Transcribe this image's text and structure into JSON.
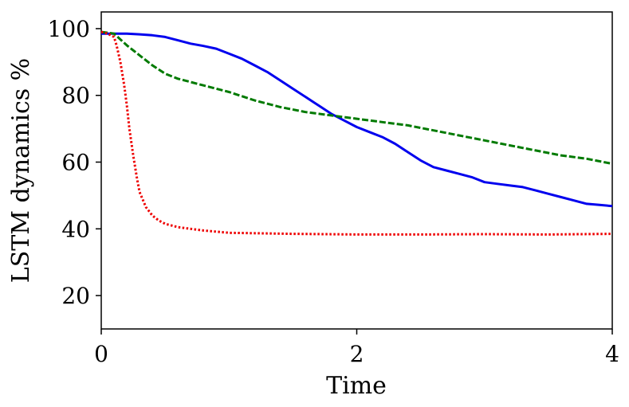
{
  "chart_data": {
    "type": "line",
    "xlabel": "Time",
    "ylabel": "LSTM dynamics %",
    "xlim": [
      0,
      4
    ],
    "ylim": [
      10,
      105
    ],
    "xticks": [
      0,
      2,
      4
    ],
    "yticks": [
      20,
      40,
      60,
      80,
      100
    ],
    "grid": false,
    "legend": "none",
    "series": [
      {
        "color": "#0000ee",
        "style": "solid",
        "x": [
          0,
          0.1,
          0.2,
          0.3,
          0.4,
          0.5,
          0.6,
          0.7,
          0.8,
          0.9,
          1.0,
          1.1,
          1.2,
          1.3,
          1.4,
          1.5,
          1.6,
          1.7,
          1.8,
          1.9,
          2.0,
          2.1,
          2.2,
          2.3,
          2.4,
          2.5,
          2.6,
          2.7,
          2.8,
          2.9,
          3.0,
          3.1,
          3.2,
          3.3,
          3.4,
          3.5,
          3.6,
          3.7,
          3.8,
          3.9,
          4.0
        ],
        "y": [
          98.5,
          98.5,
          98.5,
          98.3,
          98.0,
          97.5,
          96.5,
          95.5,
          94.8,
          94.0,
          92.5,
          91.0,
          89.0,
          87.0,
          84.5,
          82.0,
          79.5,
          77.0,
          74.5,
          72.5,
          70.5,
          69.0,
          67.5,
          65.5,
          63.0,
          60.5,
          58.5,
          57.5,
          56.5,
          55.5,
          54.0,
          53.5,
          53.0,
          52.5,
          51.5,
          50.5,
          49.5,
          48.5,
          47.5,
          47.2,
          46.8
        ]
      },
      {
        "color": "#007a00",
        "style": "dashed",
        "x": [
          0,
          0.1,
          0.2,
          0.3,
          0.4,
          0.5,
          0.6,
          0.8,
          1.0,
          1.2,
          1.4,
          1.6,
          1.8,
          2.0,
          2.2,
          2.4,
          2.6,
          2.8,
          3.0,
          3.2,
          3.4,
          3.6,
          3.8,
          4.0
        ],
        "y": [
          99.0,
          98.5,
          95.0,
          92.0,
          89.0,
          86.5,
          85.0,
          83.0,
          81.0,
          78.5,
          76.5,
          75.0,
          74.0,
          73.0,
          72.0,
          71.0,
          69.5,
          68.0,
          66.5,
          65.0,
          63.5,
          62.0,
          61.0,
          59.5
        ]
      },
      {
        "color": "#ee0000",
        "style": "dotted",
        "x": [
          0,
          0.05,
          0.1,
          0.12,
          0.15,
          0.18,
          0.2,
          0.22,
          0.25,
          0.28,
          0.3,
          0.35,
          0.4,
          0.45,
          0.5,
          0.6,
          0.8,
          1.0,
          1.5,
          2.0,
          2.5,
          3.0,
          3.5,
          4.0
        ],
        "y": [
          99.0,
          98.5,
          97.5,
          95.0,
          90.0,
          83.0,
          77.0,
          70.0,
          62.0,
          55.0,
          51.0,
          46.5,
          44.0,
          42.5,
          41.5,
          40.5,
          39.5,
          38.8,
          38.5,
          38.3,
          38.3,
          38.4,
          38.3,
          38.5
        ]
      }
    ]
  }
}
